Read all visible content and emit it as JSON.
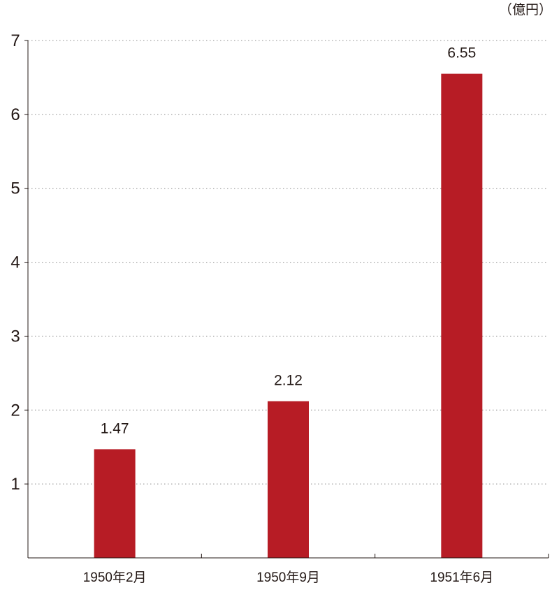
{
  "chart_data": {
    "type": "bar",
    "unit_label": "（億円）",
    "categories": [
      "1950年2月",
      "1950年9月",
      "1951年6月"
    ],
    "values": [
      1.47,
      2.12,
      6.55
    ],
    "value_labels": [
      "1.47",
      "2.12",
      "6.55"
    ],
    "yticks": [
      1,
      2,
      3,
      4,
      5,
      6,
      7
    ],
    "ylim": [
      0,
      7
    ],
    "grid": true,
    "grid_style": "dotted",
    "bar_color": "#b71c25",
    "axis_color": "#231815",
    "grid_color": "#8c8c8c"
  }
}
